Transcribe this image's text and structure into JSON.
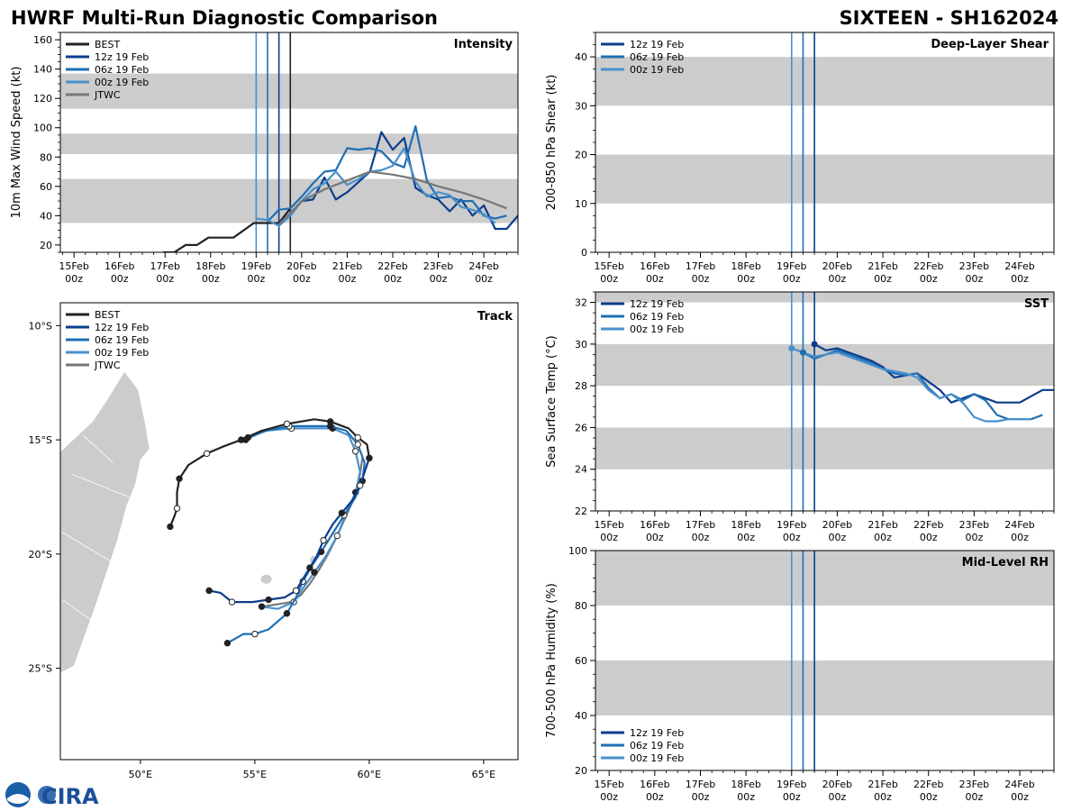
{
  "header": {
    "title_left": "HWRF Multi-Run Diagnostic Comparison",
    "title_right": "SIXTEEN - SH162024"
  },
  "colors": {
    "best": "#222222",
    "run_12z": "#0b3d8c",
    "run_06z": "#1f6fb4",
    "run_00z": "#4a90cc",
    "jtwc": "#777777",
    "band": "#cccccc",
    "land": "#cccccc"
  },
  "time_axis": {
    "labels": [
      [
        "15Feb",
        "00z"
      ],
      [
        "16Feb",
        "00z"
      ],
      [
        "17Feb",
        "00z"
      ],
      [
        "18Feb",
        "00z"
      ],
      [
        "19Feb",
        "00z"
      ],
      [
        "20Feb",
        "00z"
      ],
      [
        "21Feb",
        "00z"
      ],
      [
        "22Feb",
        "00z"
      ],
      [
        "23Feb",
        "00z"
      ],
      [
        "24Feb",
        "00z"
      ]
    ],
    "range_days": [
      -0.3,
      9.75
    ]
  },
  "chart_data": [
    {
      "id": "intensity",
      "type": "line",
      "title": "Intensity",
      "ylabel": "10m Max Wind Speed (kt)",
      "ylim": [
        15,
        165
      ],
      "yticks": [
        20,
        40,
        60,
        80,
        100,
        120,
        140,
        160
      ],
      "bands": [
        [
          35,
          65
        ],
        [
          82,
          96
        ],
        [
          113,
          137
        ]
      ],
      "init_lines": [
        {
          "day": 4.0,
          "series": "00z 19 Feb"
        },
        {
          "day": 4.25,
          "series": "06z 19 Feb"
        },
        {
          "day": 4.5,
          "series": "12z 19 Feb"
        },
        {
          "day": 4.75,
          "series": "BEST"
        }
      ],
      "legend": [
        "BEST",
        "12z 19 Feb",
        "06z 19 Feb",
        "00z 19 Feb",
        "JTWC"
      ],
      "series": [
        {
          "name": "BEST",
          "x": [
            1.95,
            2.2,
            2.45,
            2.7,
            2.95,
            3.2,
            3.5,
            3.95,
            4.25,
            4.5,
            4.75
          ],
          "y": [
            15,
            15,
            20,
            20,
            25,
            25,
            25,
            35,
            35,
            35,
            45
          ]
        },
        {
          "name": "12z 19 Feb",
          "x": [
            4.5,
            4.75,
            5.0,
            5.25,
            5.5,
            5.75,
            6.0,
            6.25,
            6.5,
            6.75,
            7.0,
            7.25,
            7.5,
            7.75,
            8.0,
            8.25,
            8.5,
            8.75,
            9.0,
            9.25,
            9.5,
            9.75
          ],
          "y": [
            35,
            40,
            50,
            51,
            66,
            51,
            56,
            63,
            70,
            97,
            85,
            93,
            59,
            54,
            51,
            43,
            51,
            40,
            47,
            31,
            31,
            40
          ]
        },
        {
          "name": "06z 19 Feb",
          "x": [
            4.25,
            4.5,
            4.75,
            5.0,
            5.25,
            5.5,
            5.75,
            6.0,
            6.25,
            6.5,
            6.75,
            7.0,
            7.25,
            7.5,
            7.75,
            8.0,
            8.25,
            8.5,
            8.75,
            9.0,
            9.25,
            9.5
          ],
          "y": [
            36,
            44,
            45,
            53,
            62,
            70,
            71,
            86,
            85,
            86,
            84,
            76,
            73,
            101,
            64,
            52,
            53,
            50,
            50,
            40,
            38,
            40
          ]
        },
        {
          "name": "00z 19 Feb",
          "x": [
            4.0,
            4.25,
            4.5,
            4.75,
            5.0,
            5.25,
            5.5,
            5.75,
            6.0,
            6.25,
            6.5,
            6.75,
            7.0,
            7.25,
            7.5,
            7.75,
            8.0,
            8.25,
            8.5,
            8.75,
            9.0,
            9.25
          ],
          "y": [
            38,
            37,
            33,
            40,
            50,
            58,
            62,
            70,
            61,
            65,
            70,
            71,
            74,
            86,
            63,
            53,
            56,
            54,
            46,
            44,
            41,
            35
          ]
        },
        {
          "name": "JTWC",
          "x": [
            4.5,
            5.0,
            5.5,
            6.0,
            6.5,
            7.0,
            7.5,
            8.0,
            8.5,
            9.0,
            9.5
          ],
          "y": [
            34,
            50,
            58,
            64,
            70,
            68,
            65,
            60,
            56,
            51,
            45
          ]
        }
      ]
    },
    {
      "id": "shear",
      "type": "line",
      "title": "Deep-Layer Shear",
      "ylabel": "200-850 hPa Shear (kt)",
      "ylim": [
        0,
        45
      ],
      "yticks": [
        0,
        10,
        20,
        30,
        40
      ],
      "bands": [
        [
          10,
          20
        ],
        [
          30,
          40
        ]
      ],
      "init_lines": [
        {
          "day": 4.0,
          "series": "00z 19 Feb"
        },
        {
          "day": 4.25,
          "series": "06z 19 Feb"
        },
        {
          "day": 4.5,
          "series": "12z 19 Feb"
        }
      ],
      "legend": [
        "12z 19 Feb",
        "06z 19 Feb",
        "00z 19 Feb"
      ],
      "series": []
    },
    {
      "id": "sst",
      "type": "line",
      "title": "SST",
      "ylabel": "Sea Surface Temp (°C)",
      "ylim": [
        22,
        32.5
      ],
      "yticks": [
        22,
        24,
        26,
        28,
        30,
        32
      ],
      "bands": [
        [
          24,
          26
        ],
        [
          28,
          30
        ],
        [
          32,
          32.5
        ]
      ],
      "init_lines": [
        {
          "day": 4.0,
          "series": "00z 19 Feb"
        },
        {
          "day": 4.25,
          "series": "06z 19 Feb"
        },
        {
          "day": 4.5,
          "series": "12z 19 Feb"
        }
      ],
      "legend": [
        "12z 19 Feb",
        "06z 19 Feb",
        "00z 19 Feb"
      ],
      "series": [
        {
          "name": "12z 19 Feb",
          "x": [
            4.5,
            4.75,
            5.0,
            5.25,
            5.5,
            5.75,
            6.0,
            6.25,
            6.5,
            6.75,
            7.0,
            7.25,
            7.5,
            7.75,
            8.0,
            8.25,
            8.5,
            8.75,
            9.0,
            9.25,
            9.5,
            9.75
          ],
          "y": [
            30.0,
            29.7,
            29.8,
            29.6,
            29.4,
            29.2,
            28.9,
            28.4,
            28.5,
            28.6,
            28.2,
            27.8,
            27.2,
            27.4,
            27.6,
            27.4,
            27.2,
            27.2,
            27.2,
            27.5,
            27.8,
            27.8
          ]
        },
        {
          "name": "06z 19 Feb",
          "x": [
            4.25,
            4.5,
            4.75,
            5.0,
            5.25,
            5.5,
            5.75,
            6.0,
            6.25,
            6.5,
            6.75,
            7.0,
            7.25,
            7.5,
            7.75,
            8.0,
            8.25,
            8.5,
            8.75,
            9.0,
            9.25,
            9.5
          ],
          "y": [
            29.6,
            29.3,
            29.5,
            29.7,
            29.5,
            29.3,
            29.1,
            28.8,
            28.6,
            28.5,
            28.6,
            27.9,
            27.4,
            27.6,
            27.3,
            27.6,
            27.3,
            26.6,
            26.4,
            26.4,
            26.4,
            26.6
          ]
        },
        {
          "name": "00z 19 Feb",
          "x": [
            4.0,
            4.25,
            4.5,
            4.75,
            5.0,
            5.25,
            5.5,
            5.75,
            6.0,
            6.25,
            6.5,
            6.75,
            7.0,
            7.25,
            7.5,
            7.75,
            8.0,
            8.25,
            8.5,
            8.75,
            9.0,
            9.25
          ],
          "y": [
            29.8,
            29.6,
            29.4,
            29.5,
            29.6,
            29.4,
            29.2,
            29.0,
            28.8,
            28.7,
            28.6,
            28.4,
            27.8,
            27.4,
            27.6,
            27.2,
            26.5,
            26.3,
            26.3,
            26.4,
            26.4,
            26.4
          ]
        }
      ]
    },
    {
      "id": "rh",
      "type": "line",
      "title": "Mid-Level RH",
      "ylabel": "700-500 hPa Humidity (%)",
      "ylim": [
        20,
        100
      ],
      "yticks": [
        20,
        40,
        60,
        80,
        100
      ],
      "bands": [
        [
          40,
          60
        ],
        [
          80,
          100
        ]
      ],
      "init_lines": [
        {
          "day": 4.0,
          "series": "00z 19 Feb"
        },
        {
          "day": 4.25,
          "series": "06z 19 Feb"
        },
        {
          "day": 4.5,
          "series": "12z 19 Feb"
        }
      ],
      "legend": [
        "12z 19 Feb",
        "06z 19 Feb",
        "00z 19 Feb"
      ],
      "series": []
    },
    {
      "id": "track",
      "type": "scatter",
      "title": "Track",
      "lon_range": [
        46.5,
        66.5
      ],
      "lat_range": [
        -29,
        -9
      ],
      "lon_ticks": [
        50,
        55,
        60,
        65
      ],
      "lon_labels": [
        "50°E",
        "55°E",
        "60°E",
        "65°E"
      ],
      "lat_ticks": [
        -10,
        -15,
        -20,
        -25
      ],
      "lat_labels": [
        "10°S",
        "15°S",
        "20°S",
        "25°S"
      ],
      "legend": [
        "BEST",
        "12z 19 Feb",
        "06z 19 Feb",
        "00z 19 Feb",
        "JTWC"
      ],
      "series": [
        {
          "name": "BEST",
          "lon": [
            51.3,
            51.5,
            51.6,
            51.6,
            51.7,
            52.1,
            52.9,
            53.6,
            54.4,
            55.3,
            56.4,
            57.6,
            58.3,
            59.1,
            59.5,
            59.9,
            60.0
          ],
          "lat": [
            -18.8,
            -18.3,
            -18.0,
            -17.3,
            -16.7,
            -16.1,
            -15.6,
            -15.3,
            -15.0,
            -14.6,
            -14.3,
            -14.1,
            -14.2,
            -14.5,
            -14.9,
            -15.2,
            -15.8
          ]
        },
        {
          "name": "12z 19 Feb",
          "lon": [
            60.0,
            59.8,
            59.6,
            59.3,
            58.8,
            58.4,
            58.0,
            57.7,
            57.4,
            57.1,
            56.8,
            56.3,
            55.6,
            54.9,
            54.0,
            53.5,
            53.0
          ],
          "lat": [
            -15.8,
            -16.4,
            -17.0,
            -17.6,
            -18.2,
            -18.7,
            -19.4,
            -20.1,
            -20.6,
            -21.1,
            -21.6,
            -21.9,
            -22.0,
            -22.1,
            -22.1,
            -21.7,
            -21.6
          ]
        },
        {
          "name": "06z 19 Feb",
          "lon": [
            54.7,
            55.5,
            56.5,
            57.5,
            58.3,
            59.0,
            59.5,
            59.8,
            59.7,
            59.4,
            58.9,
            58.4,
            57.9,
            57.5,
            57.1,
            56.8,
            56.4,
            55.6,
            55.0,
            54.5,
            53.8
          ],
          "lat": [
            -14.9,
            -14.6,
            -14.4,
            -14.4,
            -14.4,
            -14.6,
            -15.2,
            -16.0,
            -16.8,
            -17.5,
            -18.3,
            -19.1,
            -19.9,
            -20.5,
            -21.2,
            -21.9,
            -22.6,
            -23.3,
            -23.5,
            -23.5,
            -23.9
          ]
        },
        {
          "name": "00z 19 Feb",
          "lon": [
            54.6,
            55.4,
            56.6,
            57.6,
            58.4,
            59.1,
            59.4,
            59.6,
            59.4,
            59.0,
            58.6,
            58.1,
            57.6,
            57.1,
            56.7,
            56.0,
            55.3
          ],
          "lat": [
            -15.0,
            -14.6,
            -14.5,
            -14.5,
            -14.5,
            -14.8,
            -15.5,
            -16.4,
            -17.3,
            -18.2,
            -19.2,
            -20.1,
            -20.8,
            -21.5,
            -22.1,
            -22.4,
            -22.3
          ]
        },
        {
          "name": "JTWC",
          "lon": [
            59.7,
            59.6,
            59.4,
            59.0,
            58.6,
            58.2,
            57.8,
            57.4,
            57.0,
            56.6,
            56.0,
            55.3
          ],
          "lat": [
            -15.8,
            -16.5,
            -17.4,
            -18.3,
            -19.2,
            -20.0,
            -20.7,
            -21.3,
            -21.8,
            -22.1,
            -22.2,
            -22.3
          ]
        }
      ]
    }
  ],
  "logo": {
    "text": "CIRA"
  }
}
